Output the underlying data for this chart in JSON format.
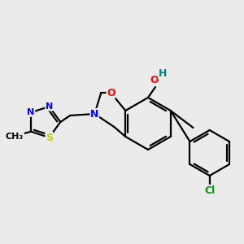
{
  "background_color": "#ebebeb",
  "bond_color": "#000000",
  "atom_colors": {
    "O": "#ff0000",
    "N": "#0000ff",
    "S": "#cccc00",
    "Cl": "#009900",
    "H_OH": "#008080",
    "C": "#000000"
  },
  "lw": 1.6
}
